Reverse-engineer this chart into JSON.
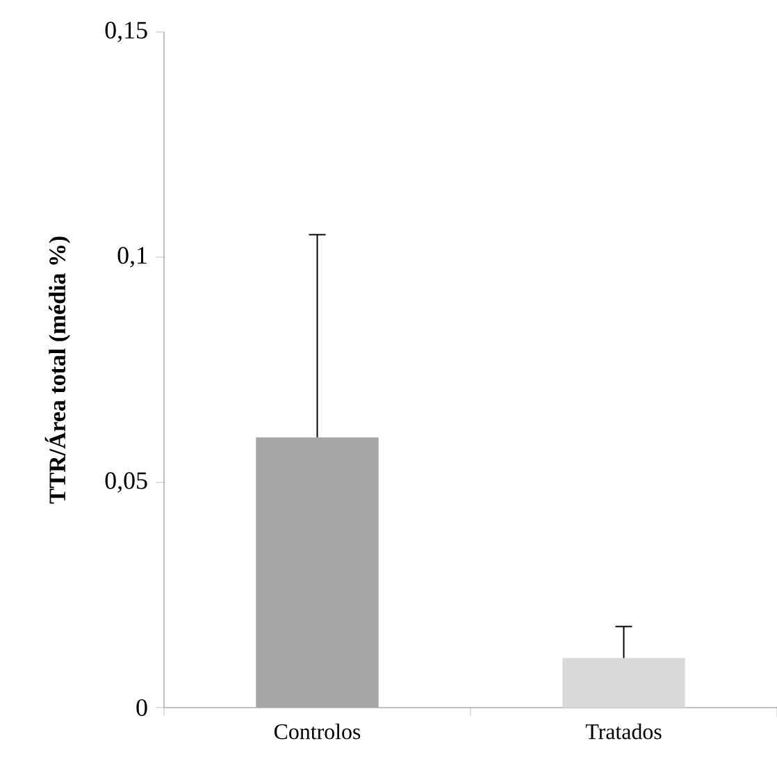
{
  "chart_data": {
    "type": "bar",
    "ylabel": "TTR/Área total (média %)",
    "categories": [
      "Controlos",
      "Tratados"
    ],
    "values": [
      0.06,
      0.011
    ],
    "colors": [
      "#a6a6a6",
      "#d9d9d9"
    ],
    "errors": [
      [
        0.06,
        0.105
      ],
      [
        0.011,
        0.018
      ]
    ],
    "ylim": [
      0,
      0.15
    ],
    "yticks": [
      {
        "value": 0,
        "label": "0"
      },
      {
        "value": 0.05,
        "label": "0,05"
      },
      {
        "value": 0.1,
        "label": "0,1"
      },
      {
        "value": 0.15,
        "label": "0,15"
      }
    ]
  }
}
